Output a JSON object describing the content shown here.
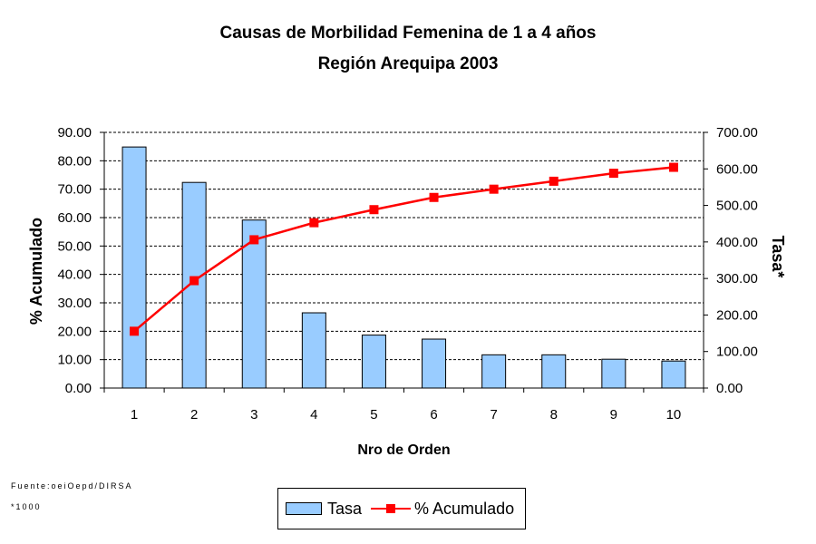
{
  "chart_data": {
    "type": "bar",
    "title": "Causas de Morbilidad Femenina de 1 a 4 años",
    "subtitle": "Región Arequipa 2003",
    "xlabel": "Nro de Orden",
    "ylabel_left": "% Acumulado",
    "ylabel_right": "Tasa*",
    "categories": [
      "1",
      "2",
      "3",
      "4",
      "5",
      "6",
      "7",
      "8",
      "9",
      "10"
    ],
    "y_left_ticks": [
      "0.00",
      "10.00",
      "20.00",
      "30.00",
      "40.00",
      "50.00",
      "60.00",
      "70.00",
      "80.00",
      "90.00"
    ],
    "y_right_ticks": [
      "0.00",
      "100.00",
      "200.00",
      "300.00",
      "400.00",
      "500.00",
      "600.00",
      "700.00"
    ],
    "ylim_left": [
      0,
      90
    ],
    "ylim_right": [
      0,
      700
    ],
    "grid": true,
    "legend_position": "bottom",
    "series": [
      {
        "name": "Tasa",
        "kind": "bar",
        "axis": "right",
        "color": "#99ccff",
        "values": [
          660,
          563,
          460,
          206,
          145,
          134,
          91,
          91,
          79,
          74
        ]
      },
      {
        "name": "% Acumulado",
        "kind": "line",
        "axis": "left",
        "color": "#ff0000",
        "values": [
          20.0,
          37.8,
          52.2,
          58.2,
          62.8,
          67.1,
          70.0,
          72.8,
          75.6,
          77.7
        ]
      }
    ]
  },
  "notes": {
    "source": "Fuente:oeiOepd/DIRSA",
    "footnote": "*1000"
  }
}
